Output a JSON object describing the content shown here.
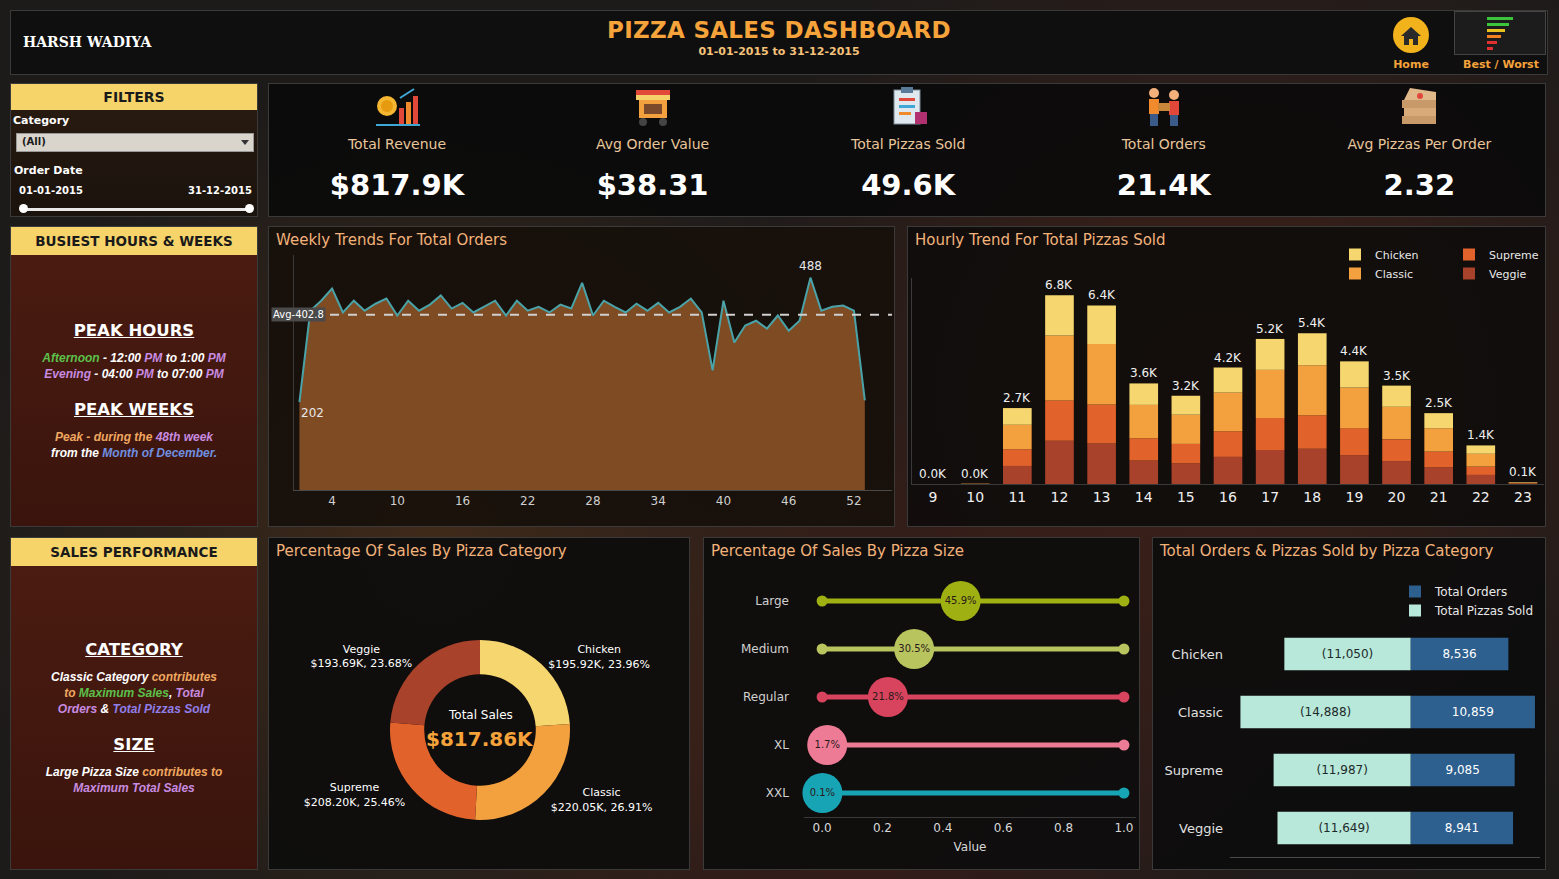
{
  "header": {
    "author": "HARSH WADIYA",
    "title": "PIZZA SALES DASHBOARD",
    "subtitle": "01-01-2015 to 31-12-2015",
    "nav": [
      "Home",
      "Best / Worst"
    ]
  },
  "filters": {
    "title": "FILTERS",
    "category_label": "Category",
    "category_value": "(All)",
    "date_label": "Order Date",
    "date_from": "01-01-2015",
    "date_to": "31-12-2015"
  },
  "kpis": [
    {
      "label": "Total Revenue",
      "value": "$817.9K"
    },
    {
      "label": "Avg Order Value",
      "value": "$38.31"
    },
    {
      "label": "Total Pizzas Sold",
      "value": "49.6K"
    },
    {
      "label": "Total Orders",
      "value": "21.4K"
    },
    {
      "label": "Avg Pizzas Per Order",
      "value": "2.32"
    }
  ],
  "busiest": {
    "title": "BUSIEST HOURS & WEEKS",
    "sections": [
      {
        "heading": "PEAK HOURS",
        "lines": [
          [
            {
              "text": "Afternoon",
              "color": "#5cc04a"
            },
            {
              "text": " - 12:00 ",
              "color": "#ffffff"
            },
            {
              "text": "PM",
              "color": "#c78be0"
            },
            {
              "text": " to 1:00 ",
              "color": "#ffffff"
            },
            {
              "text": "PM",
              "color": "#c78be0"
            }
          ],
          [
            {
              "text": "Evening",
              "color": "#c78be0"
            },
            {
              "text": " - 04:00 ",
              "color": "#ffffff"
            },
            {
              "text": "PM",
              "color": "#c78be0"
            },
            {
              "text": " to 07:00 ",
              "color": "#ffffff"
            },
            {
              "text": "PM",
              "color": "#c78be0"
            }
          ]
        ]
      },
      {
        "heading": "PEAK WEEKS",
        "lines": [
          [
            {
              "text": "Peak - during the ",
              "color": "#f0a860"
            },
            {
              "text": "48th week",
              "color": "#c78be0"
            }
          ],
          [
            {
              "text": "from the ",
              "color": "#ffffff"
            },
            {
              "text": "Month of December.",
              "color": "#6f8fe0"
            }
          ]
        ]
      }
    ]
  },
  "performance": {
    "title": "SALES PERFORMANCE",
    "sections": [
      {
        "heading": "CATEGORY",
        "lines": [
          [
            {
              "text": "Classic Category ",
              "color": "#ffffff"
            },
            {
              "text": "contributes to ",
              "color": "#f0a860"
            },
            {
              "text": "Maximum Sales",
              "color": "#5cc04a"
            },
            {
              "text": ", ",
              "color": "#ffffff"
            },
            {
              "text": "Total Orders",
              "color": "#c78be0"
            },
            {
              "text": " & ",
              "color": "#ffffff"
            },
            {
              "text": "Total Pizzas Sold",
              "color": "#8f7fe8"
            }
          ]
        ]
      },
      {
        "heading": "SIZE",
        "lines": [
          [
            {
              "text": "Large Pizza Size ",
              "color": "#ffffff"
            },
            {
              "text": "contributes to ",
              "color": "#f0a860"
            },
            {
              "text": "Maximum Total Sales",
              "color": "#c78be0"
            }
          ]
        ]
      }
    ]
  },
  "chart_data": [
    {
      "type": "line",
      "title": "Weekly Trends For Total Orders",
      "x": [
        1,
        2,
        3,
        4,
        5,
        6,
        7,
        8,
        9,
        10,
        11,
        12,
        13,
        14,
        15,
        16,
        17,
        18,
        19,
        20,
        21,
        22,
        23,
        24,
        25,
        26,
        27,
        28,
        29,
        30,
        31,
        32,
        33,
        34,
        35,
        36,
        37,
        38,
        39,
        40,
        41,
        42,
        43,
        44,
        45,
        46,
        47,
        48,
        49,
        50,
        51,
        52,
        53
      ],
      "values": [
        202,
        412,
        435,
        463,
        408,
        435,
        412,
        428,
        440,
        401,
        435,
        412,
        426,
        447,
        417,
        430,
        408,
        421,
        435,
        401,
        435,
        412,
        421,
        408,
        426,
        417,
        476,
        401,
        435,
        421,
        408,
        428,
        412,
        430,
        408,
        421,
        440,
        408,
        275,
        435,
        339,
        378,
        389,
        371,
        401,
        366,
        389,
        488,
        412,
        421,
        424,
        412,
        206
      ],
      "color": "#4aa3a8",
      "xlim": [
        0.5,
        55.5
      ],
      "xticks": [
        4,
        10,
        16,
        22,
        28,
        34,
        40,
        46,
        52
      ],
      "ylim": [
        0,
        540
      ],
      "tick_labels": "x",
      "grid": false,
      "reference_line": {
        "value": 402.8,
        "label": "Avg-402.8"
      },
      "annotations": [
        {
          "x": 1,
          "text": "202"
        },
        {
          "x": 48,
          "text": "488"
        }
      ]
    },
    {
      "type": "bar",
      "title": "Hourly Trend For Total Pizzas Sold",
      "stacked": true,
      "x": [
        9,
        10,
        11,
        12,
        13,
        14,
        15,
        16,
        17,
        18,
        19,
        20,
        21,
        22,
        23
      ],
      "series": [
        {
          "name": "Chicken",
          "color": "#f6d66e",
          "values": [
            1,
            4,
            600,
            1440,
            1380,
            770,
            680,
            900,
            1110,
            1150,
            940,
            760,
            540,
            300,
            15
          ]
        },
        {
          "name": "Classic",
          "color": "#f3a03f",
          "values": [
            1,
            6,
            880,
            2340,
            2180,
            1200,
            1050,
            1390,
            1730,
            1800,
            1460,
            1170,
            840,
            460,
            22
          ]
        },
        {
          "name": "Supreme",
          "color": "#e2622b",
          "values": [
            1,
            4,
            600,
            1440,
            1400,
            800,
            700,
            920,
            1150,
            1200,
            970,
            780,
            560,
            300,
            15
          ]
        },
        {
          "name": "Veggie",
          "color": "#a8422b",
          "values": [
            1,
            4,
            648,
            1556,
            1453,
            843,
            740,
            975,
            1221,
            1267,
            1036,
            824,
            605,
            326,
            16
          ]
        }
      ],
      "total_labels": [
        "0.0K",
        "0.0K",
        "2.7K",
        "6.8K",
        "6.4K",
        "3.6K",
        "3.2K",
        "4.2K",
        "5.2K",
        "5.4K",
        "4.4K",
        "3.5K",
        "2.5K",
        "1.4K",
        "0.1K"
      ],
      "xlim": [
        8.5,
        23.5
      ],
      "xticks": [
        9,
        10,
        11,
        12,
        13,
        14,
        15,
        16,
        17,
        18,
        19,
        20,
        21,
        22,
        23
      ],
      "ylim": [
        0,
        7400
      ],
      "tick_labels": "x",
      "grid": false,
      "legend": "top right"
    },
    {
      "type": "donut",
      "title": "Percentage Of Sales By Pizza Category",
      "categories": [
        "Chicken",
        "Classic",
        "Supreme",
        "Veggie"
      ],
      "values": [
        23.96,
        26.91,
        25.46,
        23.68
      ],
      "value_labels": [
        "$195.92K, 23.96%",
        "$220.05K, 26.91%",
        "$208.20K, 25.46%",
        "$193.69K, 23.68%"
      ],
      "colors": [
        "#f6d66e",
        "#f3a03f",
        "#e2622b",
        "#a8422b"
      ],
      "center_text": [
        "Total Sales",
        "$817.86K"
      ],
      "data_labels": true
    },
    {
      "type": "lollipop",
      "title": "Percentage Of Sales By Pizza Size",
      "orientation": "horizontal",
      "categories": [
        "Large",
        "Medium",
        "Regular",
        "XL",
        "XXL"
      ],
      "values": [
        0.459,
        0.305,
        0.218,
        0.017,
        0.001
      ],
      "value_labels": [
        "45.9%",
        "30.5%",
        "21.8%",
        "1.7%",
        "0.1%"
      ],
      "colors": [
        "#9fb012",
        "#b8c45e",
        "#d8435d",
        "#ee7b95",
        "#17a5b5"
      ],
      "xlim": [
        -0.06,
        1.04
      ],
      "xticks": [
        {
          "value": 0,
          "label": "0.0"
        },
        0.2,
        0.4,
        0.6,
        0.8,
        {
          "value": 1,
          "label": "1.0"
        }
      ],
      "x_label": "Value",
      "grid": false,
      "data_labels": true
    },
    {
      "type": "bar",
      "title": "Total Orders & Pizzas Sold by Pizza Category",
      "orientation": "horizontal",
      "stacked": true,
      "categories": [
        "Chicken",
        "Classic",
        "Supreme",
        "Veggie"
      ],
      "series": [
        {
          "name": "Total Orders",
          "color": "#2d5f8f",
          "values": [
            8536,
            10859,
            9085,
            8941
          ],
          "value_labels": [
            "8,536",
            "10,859",
            "9,085",
            "8,941"
          ]
        },
        {
          "name": "Total Pizzas Sold",
          "color": "#b7e8d9",
          "values": [
            -11050,
            -14888,
            -11987,
            -11649
          ],
          "value_labels": [
            "(11,050)",
            "(14,888)",
            "(11,987)",
            "(11,649)"
          ]
        }
      ],
      "xlim": [
        -15800,
        11300
      ],
      "tick_labels": "y",
      "grid": false,
      "legend": "top right",
      "data_labels": true
    }
  ]
}
